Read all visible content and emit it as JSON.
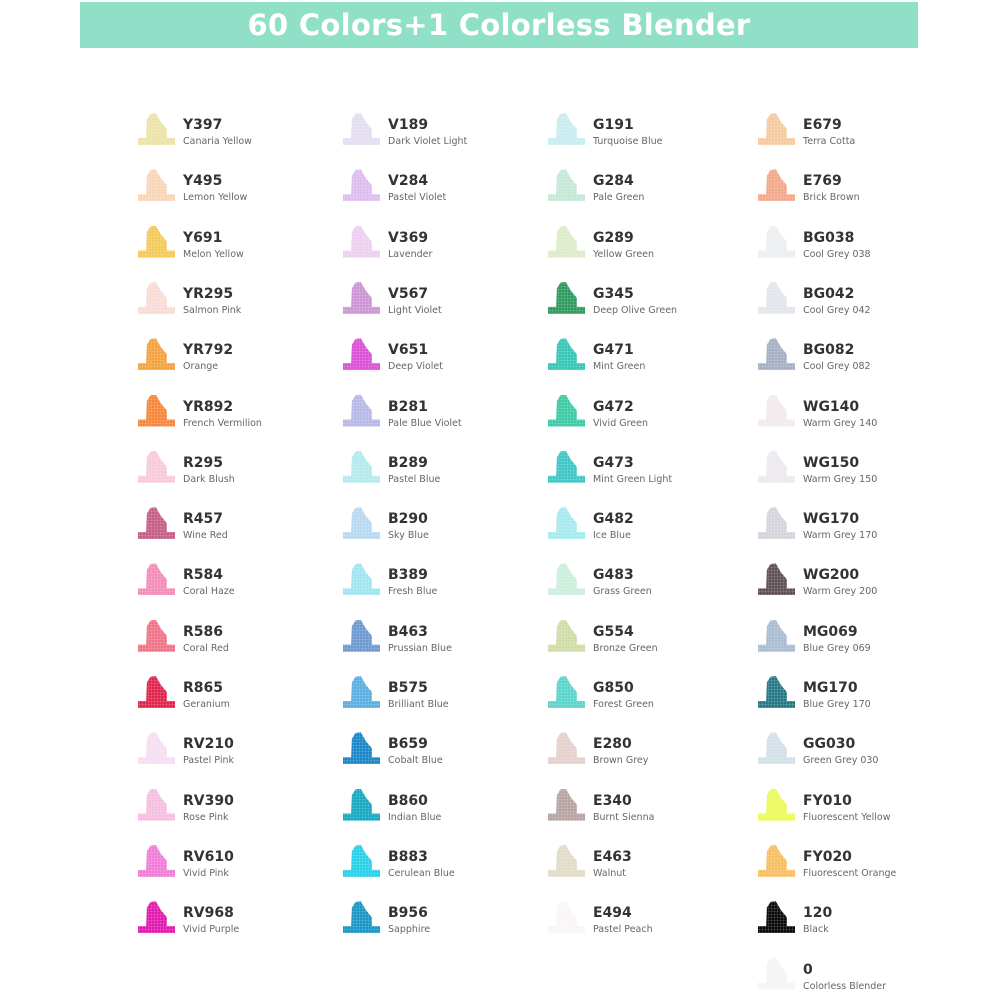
{
  "header": {
    "title": "60 Colors+1 Colorless Blender",
    "background": "#90e0c8"
  },
  "columns": [
    [
      {
        "code": "Y397",
        "name": "Canaria Yellow",
        "color": "#ece3a6"
      },
      {
        "code": "Y495",
        "name": "Lemon Yellow",
        "color": "#f7d6b8"
      },
      {
        "code": "Y691",
        "name": "Melon Yellow",
        "color": "#f4c95a"
      },
      {
        "code": "YR295",
        "name": "Salmon Pink",
        "color": "#f8dcd4"
      },
      {
        "code": "YR792",
        "name": "Orange",
        "color": "#f5a23e"
      },
      {
        "code": "YR892",
        "name": "French Vermilion",
        "color": "#f6863a"
      },
      {
        "code": "R295",
        "name": "Dark Blush",
        "color": "#f8c9da"
      },
      {
        "code": "R457",
        "name": "Wine Red",
        "color": "#c55e86"
      },
      {
        "code": "R584",
        "name": "Coral Haze",
        "color": "#f28cb8"
      },
      {
        "code": "R586",
        "name": "Coral Red",
        "color": "#f07388"
      },
      {
        "code": "R865",
        "name": "Geranium",
        "color": "#e0244e"
      },
      {
        "code": "RV210",
        "name": "Pastel Pink",
        "color": "#f6def2"
      },
      {
        "code": "RV390",
        "name": "Rose Pink",
        "color": "#f5bde0"
      },
      {
        "code": "RV610",
        "name": "Vivid Pink",
        "color": "#f07cd8"
      },
      {
        "code": "RV968",
        "name": "Vivid Purple",
        "color": "#e01aae"
      }
    ],
    [
      {
        "code": "V189",
        "name": "Dark Violet Light",
        "color": "#e2ddf0"
      },
      {
        "code": "V284",
        "name": "Pastel Violet",
        "color": "#dcbdee"
      },
      {
        "code": "V369",
        "name": "Lavender",
        "color": "#ecd0f0"
      },
      {
        "code": "V567",
        "name": "Light Violet",
        "color": "#cc94d6"
      },
      {
        "code": "V651",
        "name": "Deep Violet",
        "color": "#dc4fd6"
      },
      {
        "code": "B281",
        "name": "Pale Blue Violet",
        "color": "#b6b8e8"
      },
      {
        "code": "B289",
        "name": "Pastel Blue",
        "color": "#b4eaee"
      },
      {
        "code": "B290",
        "name": "Sky Blue",
        "color": "#b8d8f0"
      },
      {
        "code": "B389",
        "name": "Fresh Blue",
        "color": "#a0e4f0"
      },
      {
        "code": "B463",
        "name": "Prussian Blue",
        "color": "#6e98d0"
      },
      {
        "code": "B575",
        "name": "Brilliant Blue",
        "color": "#5aaee0"
      },
      {
        "code": "B659",
        "name": "Cobalt Blue",
        "color": "#1886c8"
      },
      {
        "code": "B860",
        "name": "Indian Blue",
        "color": "#16a8c0"
      },
      {
        "code": "B883",
        "name": "Cerulean Blue",
        "color": "#26d0e6"
      },
      {
        "code": "B956",
        "name": "Sapphire",
        "color": "#1a96c6"
      }
    ],
    [
      {
        "code": "G191",
        "name": "Turquoise Blue",
        "color": "#c8ecf0"
      },
      {
        "code": "G284",
        "name": "Pale Green",
        "color": "#c4e8d6"
      },
      {
        "code": "G289",
        "name": "Yellow Green",
        "color": "#dcecc8"
      },
      {
        "code": "G345",
        "name": "Deep Olive Green",
        "color": "#2e9a5e"
      },
      {
        "code": "G471",
        "name": "Mint Green",
        "color": "#34c6b6"
      },
      {
        "code": "G472",
        "name": "Vivid Green",
        "color": "#3ccaa6"
      },
      {
        "code": "G473",
        "name": "Mint Green Light",
        "color": "#3ec6c4"
      },
      {
        "code": "G482",
        "name": "Ice Blue",
        "color": "#a6eaee"
      },
      {
        "code": "G483",
        "name": "Grass Green",
        "color": "#cceedc"
      },
      {
        "code": "G554",
        "name": "Bronze Green",
        "color": "#d0dca6"
      },
      {
        "code": "G850",
        "name": "Forest Green",
        "color": "#5ad4cc"
      },
      {
        "code": "E280",
        "name": "Brown Grey",
        "color": "#e4d0cc"
      },
      {
        "code": "E340",
        "name": "Burnt Sienna",
        "color": "#b8a2a2"
      },
      {
        "code": "E463",
        "name": "Walnut",
        "color": "#e0dcc8"
      },
      {
        "code": "E494",
        "name": "Pastel Peach",
        "color": "#f8f6f6"
      }
    ],
    [
      {
        "code": "E679",
        "name": "Terra Cotta",
        "color": "#f6caa0"
      },
      {
        "code": "E769",
        "name": "Brick Brown",
        "color": "#f2a88a"
      },
      {
        "code": "BG038",
        "name": "Cool Grey 038",
        "color": "#eceef0"
      },
      {
        "code": "BG042",
        "name": "Cool Grey 042",
        "color": "#e2e6ec"
      },
      {
        "code": "BG082",
        "name": "Cool Grey 082",
        "color": "#a6b0c4"
      },
      {
        "code": "WG140",
        "name": "Warm Grey 140",
        "color": "#f2eaee"
      },
      {
        "code": "WG150",
        "name": "Warm Grey 150",
        "color": "#eceaee"
      },
      {
        "code": "WG170",
        "name": "Warm Grey 170",
        "color": "#d4d4dc"
      },
      {
        "code": "WG200",
        "name": "Warm Grey 200",
        "color": "#5e5054"
      },
      {
        "code": "MG069",
        "name": "Blue Grey 069",
        "color": "#a8bcd2"
      },
      {
        "code": "MG170",
        "name": "Blue Grey 170",
        "color": "#267886"
      },
      {
        "code": "GG030",
        "name": "Green Grey 030",
        "color": "#d4e0e8"
      },
      {
        "code": "FY010",
        "name": "Fluorescent Yellow",
        "color": "#ecfa5a"
      },
      {
        "code": "FY020",
        "name": "Fluorescent Orange",
        "color": "#f8be62"
      },
      {
        "code": "120",
        "name": "Black",
        "color": "#0a0a0a"
      },
      {
        "code": "0",
        "name": "Colorless Blender",
        "color": "#f4f4f4"
      }
    ]
  ]
}
